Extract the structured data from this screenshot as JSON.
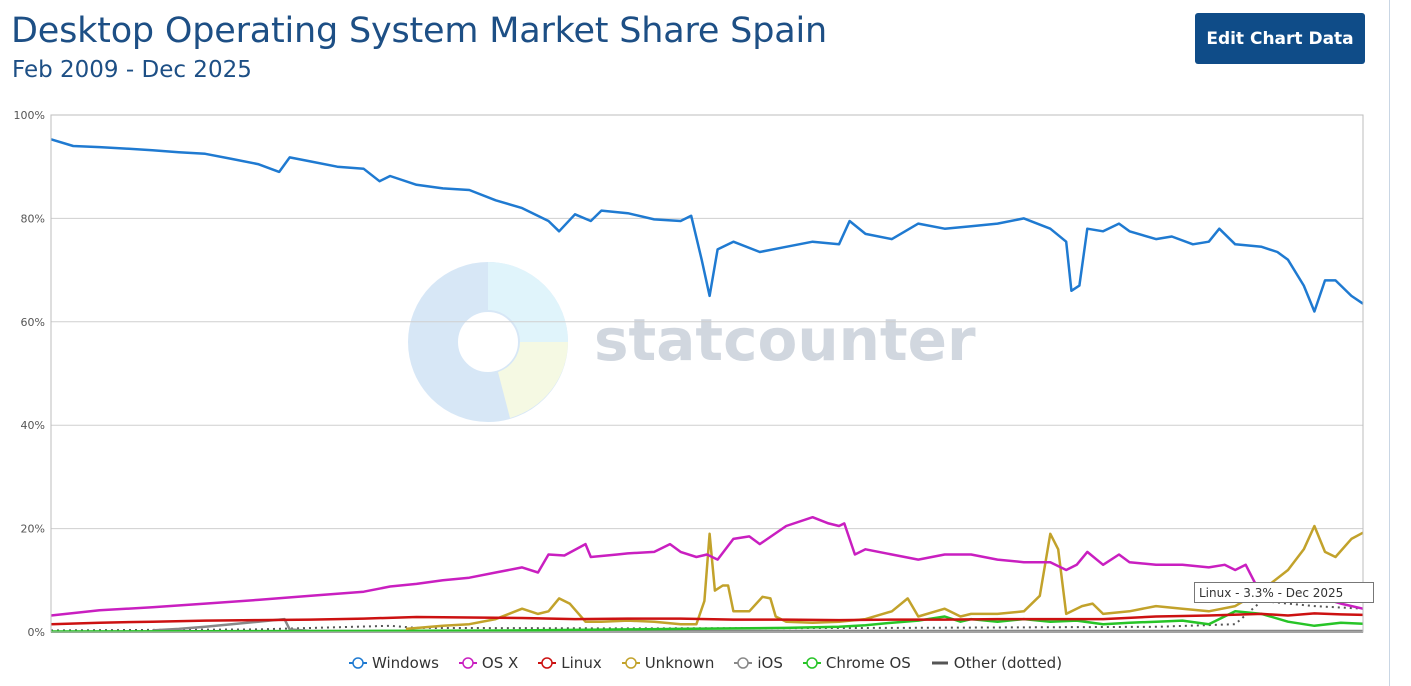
{
  "header": {
    "title": "Desktop Operating System Market Share Spain",
    "subtitle": "Feb 2009 - Dec 2025",
    "edit_button": "Edit Chart Data"
  },
  "watermark": "statcounter",
  "tooltip": "Linux - 3.3% - Dec 2025",
  "colors": {
    "windows": "#1f7ad1",
    "osx": "#c91fc0",
    "linux": "#cc1111",
    "unknown": "#c2a22b",
    "ios": "#888888",
    "chromeos": "#27c427",
    "other": "#555555"
  },
  "chart_data": {
    "type": "line",
    "x_range": [
      "2009-02",
      "2025-12"
    ],
    "ylim": [
      0,
      100
    ],
    "y_ticks": [
      0,
      20,
      40,
      60,
      80,
      100
    ],
    "y_tick_labels": [
      "0%",
      "20%",
      "40%",
      "60%",
      "80%",
      "100%"
    ],
    "grid": true,
    "legend_position": "bottom",
    "series": [
      {
        "name": "Windows",
        "key": "windows",
        "dotted": false,
        "points": [
          [
            2009.08,
            95.3
          ],
          [
            2009.5,
            94
          ],
          [
            2010,
            93.8
          ],
          [
            2010.5,
            93.5
          ],
          [
            2011,
            93.2
          ],
          [
            2011.5,
            92.8
          ],
          [
            2012,
            92.5
          ],
          [
            2012.5,
            91.5
          ],
          [
            2013,
            90.5
          ],
          [
            2013.4,
            89
          ],
          [
            2013.6,
            91.8
          ],
          [
            2014,
            91
          ],
          [
            2014.5,
            90
          ],
          [
            2015,
            89.6
          ],
          [
            2015.3,
            87.2
          ],
          [
            2015.5,
            88.2
          ],
          [
            2016,
            86.5
          ],
          [
            2016.5,
            85.8
          ],
          [
            2017,
            85.5
          ],
          [
            2017.5,
            83.5
          ],
          [
            2018,
            82
          ],
          [
            2018.5,
            79.5
          ],
          [
            2018.7,
            77.5
          ],
          [
            2019,
            80.8
          ],
          [
            2019.3,
            79.5
          ],
          [
            2019.5,
            81.5
          ],
          [
            2020,
            81
          ],
          [
            2020.5,
            79.8
          ],
          [
            2021,
            79.5
          ],
          [
            2021.2,
            80.5
          ],
          [
            2021.4,
            72
          ],
          [
            2021.55,
            65
          ],
          [
            2021.7,
            74
          ],
          [
            2022,
            75.5
          ],
          [
            2022.5,
            73.5
          ],
          [
            2023,
            74.5
          ],
          [
            2023.5,
            75.5
          ],
          [
            2024,
            75
          ],
          [
            2024.2,
            79.5
          ],
          [
            2024.5,
            77
          ],
          [
            2025,
            76
          ],
          [
            2025.5,
            79
          ],
          [
            2026,
            78
          ],
          [
            2026.5,
            78.5
          ],
          [
            2027,
            79
          ],
          [
            2027.5,
            80
          ],
          [
            2028,
            78
          ],
          [
            2028.3,
            75.5
          ],
          [
            2028.4,
            66
          ],
          [
            2028.55,
            67
          ],
          [
            2028.7,
            78
          ],
          [
            2029,
            77.5
          ],
          [
            2029.3,
            79
          ],
          [
            2029.5,
            77.5
          ],
          [
            2030,
            76
          ],
          [
            2030.3,
            76.5
          ],
          [
            2030.7,
            75
          ],
          [
            2031,
            75.5
          ],
          [
            2031.2,
            78
          ],
          [
            2031.5,
            75
          ],
          [
            2032,
            74.5
          ],
          [
            2032.3,
            73.5
          ],
          [
            2032.5,
            72
          ],
          [
            2032.8,
            67
          ],
          [
            2033,
            62
          ],
          [
            2033.2,
            68
          ],
          [
            2033.4,
            68
          ],
          [
            2033.7,
            65
          ],
          [
            2033.92,
            63.5
          ]
        ]
      },
      {
        "name": "OS X",
        "key": "osx",
        "dotted": false,
        "points": [
          [
            2009.08,
            3.2
          ],
          [
            2010,
            4.2
          ],
          [
            2011,
            4.8
          ],
          [
            2012,
            5.5
          ],
          [
            2013,
            6.2
          ],
          [
            2014,
            7
          ],
          [
            2015,
            7.8
          ],
          [
            2015.5,
            8.8
          ],
          [
            2016,
            9.3
          ],
          [
            2016.5,
            10
          ],
          [
            2017,
            10.5
          ],
          [
            2017.5,
            11.5
          ],
          [
            2018,
            12.5
          ],
          [
            2018.3,
            11.5
          ],
          [
            2018.5,
            15
          ],
          [
            2018.8,
            14.8
          ],
          [
            2019.2,
            17
          ],
          [
            2019.3,
            14.5
          ],
          [
            2019.8,
            15
          ],
          [
            2020,
            15.2
          ],
          [
            2020.5,
            15.5
          ],
          [
            2020.8,
            17
          ],
          [
            2021,
            15.5
          ],
          [
            2021.3,
            14.5
          ],
          [
            2021.5,
            15
          ],
          [
            2021.7,
            14
          ],
          [
            2022,
            18
          ],
          [
            2022.3,
            18.5
          ],
          [
            2022.5,
            17
          ],
          [
            2023,
            20.5
          ],
          [
            2023.5,
            22.2
          ],
          [
            2023.8,
            21
          ],
          [
            2024,
            20.5
          ],
          [
            2024.1,
            21
          ],
          [
            2024.3,
            15
          ],
          [
            2024.5,
            16
          ],
          [
            2025,
            15
          ],
          [
            2025.5,
            14
          ],
          [
            2026,
            15
          ],
          [
            2026.5,
            15
          ],
          [
            2027,
            14
          ],
          [
            2027.5,
            13.5
          ],
          [
            2028,
            13.5
          ],
          [
            2028.3,
            12
          ],
          [
            2028.5,
            13
          ],
          [
            2028.7,
            15.5
          ],
          [
            2029,
            13
          ],
          [
            2029.3,
            15
          ],
          [
            2029.5,
            13.5
          ],
          [
            2030,
            13
          ],
          [
            2030.5,
            13
          ],
          [
            2031,
            12.5
          ],
          [
            2031.3,
            13
          ],
          [
            2031.5,
            12
          ],
          [
            2031.7,
            13
          ],
          [
            2031.9,
            9
          ],
          [
            2032.1,
            8.5
          ],
          [
            2032.3,
            8
          ],
          [
            2032.6,
            7.5
          ],
          [
            2033,
            7
          ],
          [
            2033.5,
            5.5
          ],
          [
            2033.92,
            4.5
          ]
        ]
      },
      {
        "name": "Linux",
        "key": "linux",
        "dotted": false,
        "points": [
          [
            2009.08,
            1.5
          ],
          [
            2010,
            1.8
          ],
          [
            2011,
            2
          ],
          [
            2012,
            2.2
          ],
          [
            2013,
            2.3
          ],
          [
            2014,
            2.4
          ],
          [
            2015,
            2.6
          ],
          [
            2016,
            2.9
          ],
          [
            2017,
            2.8
          ],
          [
            2018,
            2.7
          ],
          [
            2019,
            2.5
          ],
          [
            2020,
            2.6
          ],
          [
            2021,
            2.6
          ],
          [
            2022,
            2.4
          ],
          [
            2023,
            2.4
          ],
          [
            2024,
            2.3
          ],
          [
            2025,
            2.4
          ],
          [
            2026,
            2.4
          ],
          [
            2027,
            2.5
          ],
          [
            2028,
            2.5
          ],
          [
            2029,
            2.5
          ],
          [
            2030,
            3
          ],
          [
            2031,
            3.2
          ],
          [
            2032,
            3.5
          ],
          [
            2032.5,
            3.2
          ],
          [
            2033,
            3.6
          ],
          [
            2033.5,
            3.4
          ],
          [
            2033.92,
            3.3
          ]
        ]
      },
      {
        "name": "Unknown",
        "key": "unknown",
        "dotted": false,
        "points": [
          [
            2015.8,
            0.6
          ],
          [
            2016.5,
            1.2
          ],
          [
            2017,
            1.5
          ],
          [
            2017.5,
            2.5
          ],
          [
            2018,
            4.5
          ],
          [
            2018.3,
            3.5
          ],
          [
            2018.5,
            4
          ],
          [
            2018.7,
            6.5
          ],
          [
            2018.9,
            5.5
          ],
          [
            2019.2,
            2
          ],
          [
            2019.5,
            2
          ],
          [
            2020,
            2.2
          ],
          [
            2020.5,
            2
          ],
          [
            2021,
            1.5
          ],
          [
            2021.3,
            1.5
          ],
          [
            2021.45,
            6
          ],
          [
            2021.55,
            19
          ],
          [
            2021.65,
            8
          ],
          [
            2021.8,
            9
          ],
          [
            2021.9,
            9
          ],
          [
            2022,
            4
          ],
          [
            2022.3,
            4
          ],
          [
            2022.55,
            6.8
          ],
          [
            2022.7,
            6.5
          ],
          [
            2022.8,
            3
          ],
          [
            2023,
            2
          ],
          [
            2023.5,
            1.8
          ],
          [
            2024,
            2
          ],
          [
            2024.5,
            2.5
          ],
          [
            2025,
            4
          ],
          [
            2025.3,
            6.5
          ],
          [
            2025.5,
            3
          ],
          [
            2026,
            4.5
          ],
          [
            2026.3,
            3
          ],
          [
            2026.5,
            3.5
          ],
          [
            2027,
            3.5
          ],
          [
            2027.5,
            4
          ],
          [
            2027.8,
            7
          ],
          [
            2028,
            19
          ],
          [
            2028.15,
            16
          ],
          [
            2028.3,
            3.5
          ],
          [
            2028.6,
            5
          ],
          [
            2028.8,
            5.5
          ],
          [
            2029,
            3.5
          ],
          [
            2029.5,
            4
          ],
          [
            2030,
            5
          ],
          [
            2030.5,
            4.5
          ],
          [
            2031,
            4
          ],
          [
            2031.5,
            5
          ],
          [
            2032,
            8
          ],
          [
            2032.5,
            12
          ],
          [
            2032.8,
            16
          ],
          [
            2033,
            20.5
          ],
          [
            2033.2,
            15.5
          ],
          [
            2033.4,
            14.5
          ],
          [
            2033.7,
            18
          ],
          [
            2033.92,
            19.2
          ]
        ]
      },
      {
        "name": "iOS",
        "key": "ios",
        "dotted": false,
        "points": [
          [
            2011,
            0.3
          ],
          [
            2011.5,
            0.6
          ],
          [
            2012,
            1
          ],
          [
            2012.5,
            1.5
          ],
          [
            2013,
            2
          ],
          [
            2013.5,
            2.5
          ],
          [
            2013.6,
            0.5
          ],
          [
            2014,
            0.2
          ],
          [
            2015,
            0.2
          ],
          [
            2020,
            0.2
          ],
          [
            2030,
            0.2
          ],
          [
            2033.92,
            0.2
          ]
        ]
      },
      {
        "name": "Chrome OS",
        "key": "chromeos",
        "dotted": false,
        "points": [
          [
            2009.08,
            0.1
          ],
          [
            2015,
            0.2
          ],
          [
            2018,
            0.3
          ],
          [
            2020,
            0.5
          ],
          [
            2021,
            0.6
          ],
          [
            2022,
            0.7
          ],
          [
            2023,
            0.8
          ],
          [
            2024,
            1
          ],
          [
            2024.5,
            1.3
          ],
          [
            2025,
            1.8
          ],
          [
            2025.5,
            2.2
          ],
          [
            2026,
            3
          ],
          [
            2026.3,
            2
          ],
          [
            2026.5,
            2.5
          ],
          [
            2027,
            2
          ],
          [
            2027.5,
            2.5
          ],
          [
            2028,
            2
          ],
          [
            2028.5,
            2.2
          ],
          [
            2029,
            1.5
          ],
          [
            2029.5,
            1.8
          ],
          [
            2030,
            2
          ],
          [
            2030.5,
            2.2
          ],
          [
            2031,
            1.5
          ],
          [
            2031.5,
            4
          ],
          [
            2032,
            3.5
          ],
          [
            2032.5,
            2
          ],
          [
            2033,
            1.2
          ],
          [
            2033.5,
            1.8
          ],
          [
            2033.92,
            1.6
          ]
        ]
      },
      {
        "name": "Other (dotted)",
        "key": "other",
        "dotted": true,
        "points": [
          [
            2009.08,
            0.3
          ],
          [
            2013,
            0.5
          ],
          [
            2015.5,
            1.2
          ],
          [
            2016,
            0.8
          ],
          [
            2020,
            0.7
          ],
          [
            2025,
            0.8
          ],
          [
            2030,
            1
          ],
          [
            2031.5,
            1.5
          ],
          [
            2032,
            6
          ],
          [
            2032.5,
            5.5
          ],
          [
            2033,
            5
          ],
          [
            2033.92,
            4.5
          ]
        ]
      }
    ]
  },
  "legend": [
    {
      "label": "Windows",
      "key": "windows",
      "type": "circle"
    },
    {
      "label": "OS X",
      "key": "osx",
      "type": "circle"
    },
    {
      "label": "Linux",
      "key": "linux",
      "type": "circle"
    },
    {
      "label": "Unknown",
      "key": "unknown",
      "type": "circle"
    },
    {
      "label": "iOS",
      "key": "ios",
      "type": "circle"
    },
    {
      "label": "Chrome OS",
      "key": "chromeos",
      "type": "circle"
    },
    {
      "label": "Other (dotted)",
      "key": "other",
      "type": "line"
    }
  ]
}
